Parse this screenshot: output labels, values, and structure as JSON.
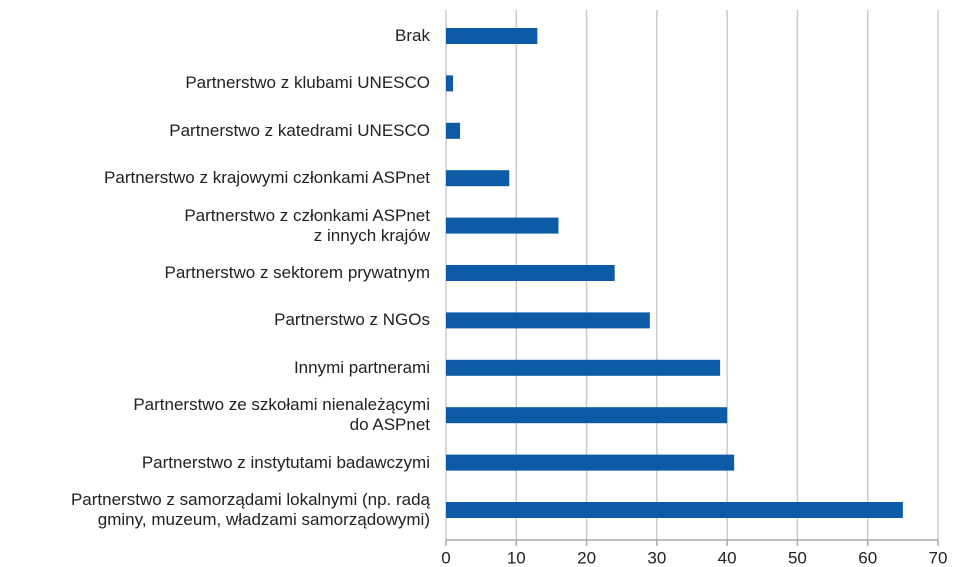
{
  "chart_data": {
    "type": "bar",
    "orientation": "horizontal",
    "categories": [
      "Brak",
      "Partnerstwo z klubami UNESCO",
      "Partnerstwo z katedrami UNESCO",
      "Partnerstwo z krajowymi członkami ASPnet",
      "Partnerstwo z członkami ASPnet\nz innych krajów",
      "Partnerstwo z sektorem prywatnym",
      "Partnerstwo z NGOs",
      "Innymi partnerami",
      "Partnerstwo ze szkołami nienależącymi\ndo ASPnet",
      "Partnerstwo z instytutami badawczymi",
      "Partnerstwo z samorządami lokalnymi (np. radą\ngminy, muzeum, władzami samorządowymi)"
    ],
    "values": [
      13,
      1,
      2,
      9,
      16,
      24,
      29,
      39,
      40,
      41,
      65
    ],
    "color": "#0d5aa7",
    "xlim": [
      0,
      70
    ],
    "xticks": [
      0,
      10,
      20,
      30,
      40,
      50,
      60,
      70
    ],
    "grid": true
  }
}
